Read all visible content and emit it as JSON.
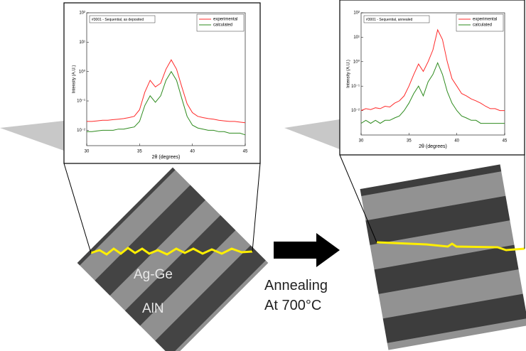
{
  "chart_data": [
    {
      "type": "line",
      "title": "#3001 - Sequential, as deposited",
      "x_label": "2θ (degrees)",
      "y_label": "Intensity (A.U.)",
      "log_y": true,
      "legend": "upper right",
      "x": [
        30,
        30.5,
        31,
        31.5,
        32,
        32.5,
        33,
        33.5,
        34,
        34.5,
        35,
        35.5,
        36,
        36.5,
        37,
        37.5,
        38,
        38.5,
        39,
        39.5,
        40,
        40.5,
        41,
        41.5,
        42,
        42.5,
        43,
        43.5,
        44,
        44.5,
        45
      ],
      "series": [
        {
          "name": "experimental",
          "color": "#ff2a2a",
          "values": [
            0.02,
            0.02,
            0.021,
            0.022,
            0.022,
            0.023,
            0.024,
            0.025,
            0.027,
            0.03,
            0.05,
            0.2,
            0.5,
            0.3,
            0.4,
            1.2,
            2.5,
            1.2,
            0.3,
            0.08,
            0.04,
            0.03,
            0.027,
            0.025,
            0.024,
            0.022,
            0.021,
            0.02,
            0.02,
            0.019,
            0.018
          ]
        },
        {
          "name": "calculated",
          "color": "#2e8b1e",
          "values": [
            0.009,
            0.009,
            0.0095,
            0.01,
            0.01,
            0.01,
            0.011,
            0.011,
            0.012,
            0.013,
            0.02,
            0.07,
            0.15,
            0.09,
            0.15,
            0.5,
            1,
            0.5,
            0.12,
            0.03,
            0.015,
            0.012,
            0.011,
            0.01,
            0.01,
            0.009,
            0.009,
            0.008,
            0.008,
            0.008,
            0.007
          ]
        }
      ],
      "xlim": [
        30,
        45
      ],
      "xticks": [
        30,
        35,
        40,
        45
      ],
      "ylim": [
        0.003,
        100
      ],
      "yticks": [
        {
          "value": 0.01,
          "label": "10⁻²"
        },
        {
          "value": 0.1,
          "label": "10⁻¹"
        },
        {
          "value": 1,
          "label": "10⁰"
        },
        {
          "value": 10,
          "label": "10¹"
        },
        {
          "value": 100,
          "label": "10²"
        }
      ]
    },
    {
      "type": "line",
      "title": "#3001 - Sequential, annealed",
      "x_label": "2θ (degrees)",
      "y_label": "Intensity (A.U.)",
      "log_y": true,
      "legend": "upper right",
      "x": [
        30,
        30.5,
        31,
        31.5,
        32,
        32.5,
        33,
        33.5,
        34,
        34.5,
        35,
        35.5,
        36,
        36.5,
        37,
        37.5,
        38,
        38.5,
        39,
        39.5,
        40,
        40.5,
        41,
        41.5,
        42,
        42.5,
        43,
        43.5,
        44,
        44.5,
        45
      ],
      "series": [
        {
          "name": "experimental",
          "color": "#ff2a2a",
          "values": [
            0.01,
            0.012,
            0.011,
            0.013,
            0.012,
            0.015,
            0.014,
            0.02,
            0.025,
            0.04,
            0.1,
            0.3,
            0.8,
            0.4,
            1,
            3,
            20,
            8,
            1,
            0.2,
            0.1,
            0.05,
            0.04,
            0.03,
            0.025,
            0.02,
            0.015,
            0.012,
            0.012,
            0.01,
            0.01
          ]
        },
        {
          "name": "calculated",
          "color": "#2e8b1e",
          "values": [
            0.003,
            0.004,
            0.003,
            0.004,
            0.003,
            0.004,
            0.004,
            0.005,
            0.006,
            0.01,
            0.02,
            0.05,
            0.1,
            0.04,
            0.15,
            0.3,
            0.9,
            0.3,
            0.06,
            0.02,
            0.01,
            0.006,
            0.005,
            0.004,
            0.004,
            0.003,
            0.003,
            0.003,
            0.003,
            0.003,
            0.003
          ]
        }
      ],
      "xlim": [
        30,
        45
      ],
      "xticks": [
        30,
        35,
        40,
        45
      ],
      "ylim": [
        0.001,
        100
      ],
      "yticks": [
        {
          "value": 0.01,
          "label": "10⁻²"
        },
        {
          "value": 0.1,
          "label": "10⁻¹"
        },
        {
          "value": 1,
          "label": "10⁰"
        },
        {
          "value": 10,
          "label": "10¹"
        },
        {
          "value": 100,
          "label": "10²"
        }
      ]
    }
  ],
  "image_labels": {
    "top_layer": "Ag-Ge",
    "bottom_layer": "AlN"
  },
  "annotation": [
    "Annealing",
    "At 700°C"
  ]
}
